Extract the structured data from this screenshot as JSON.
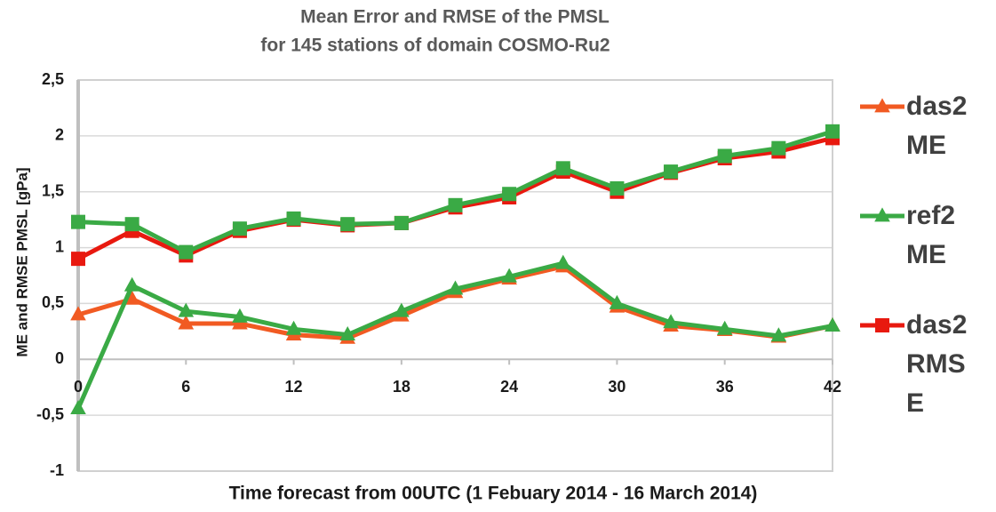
{
  "chart_data": {
    "type": "line",
    "title": [
      "Mean Error and  RMSE of the PMSL",
      "for 145 stations of domain COSMO-Ru2"
    ],
    "x_label": "Time forecast from 00UTC (1 Febuary 2014 - 16 March 2014)",
    "y_label": "ME and RMSE  PMSL  [gPa]",
    "x": [
      0,
      3,
      6,
      9,
      12,
      15,
      18,
      21,
      24,
      27,
      30,
      33,
      36,
      39,
      42
    ],
    "xlim": [
      0,
      42
    ],
    "xticks": [
      0,
      6,
      12,
      18,
      24,
      30,
      36,
      42
    ],
    "ylim": [
      -1,
      2.5
    ],
    "yticks": [
      -1,
      {
        "value": -0.5,
        "label": "-0,5"
      },
      0,
      {
        "value": 0.5,
        "label": "0,5"
      },
      1,
      {
        "value": 1.5,
        "label": "1,5"
      },
      2,
      {
        "value": 2.5,
        "label": "2,5"
      }
    ],
    "grid": true,
    "legend": "right",
    "series": [
      {
        "name": "das2 RMSE",
        "color": "#e8190f",
        "marker": "square",
        "values": [
          0.9,
          1.15,
          0.93,
          1.15,
          1.25,
          1.2,
          1.22,
          1.36,
          1.45,
          1.68,
          1.5,
          1.67,
          1.8,
          1.86,
          1.98
        ]
      },
      {
        "color": "#3aaa45",
        "marker": "square",
        "values": [
          1.23,
          1.21,
          0.96,
          1.17,
          1.26,
          1.21,
          1.22,
          1.38,
          1.48,
          1.71,
          1.53,
          1.68,
          1.82,
          1.89,
          2.04
        ]
      },
      {
        "name": "das2 ME",
        "color": "#f15a22",
        "marker": "triangle",
        "values": [
          0.4,
          0.54,
          0.32,
          0.32,
          0.22,
          0.19,
          0.39,
          0.6,
          0.72,
          0.83,
          0.47,
          0.3,
          0.26,
          0.2,
          0.3
        ]
      },
      {
        "name": "ref2 ME",
        "color": "#3aaa45",
        "marker": "triangle",
        "values": [
          -0.44,
          0.66,
          0.43,
          0.38,
          0.27,
          0.22,
          0.43,
          0.63,
          0.74,
          0.86,
          0.5,
          0.33,
          0.27,
          0.21,
          0.3
        ]
      }
    ]
  }
}
